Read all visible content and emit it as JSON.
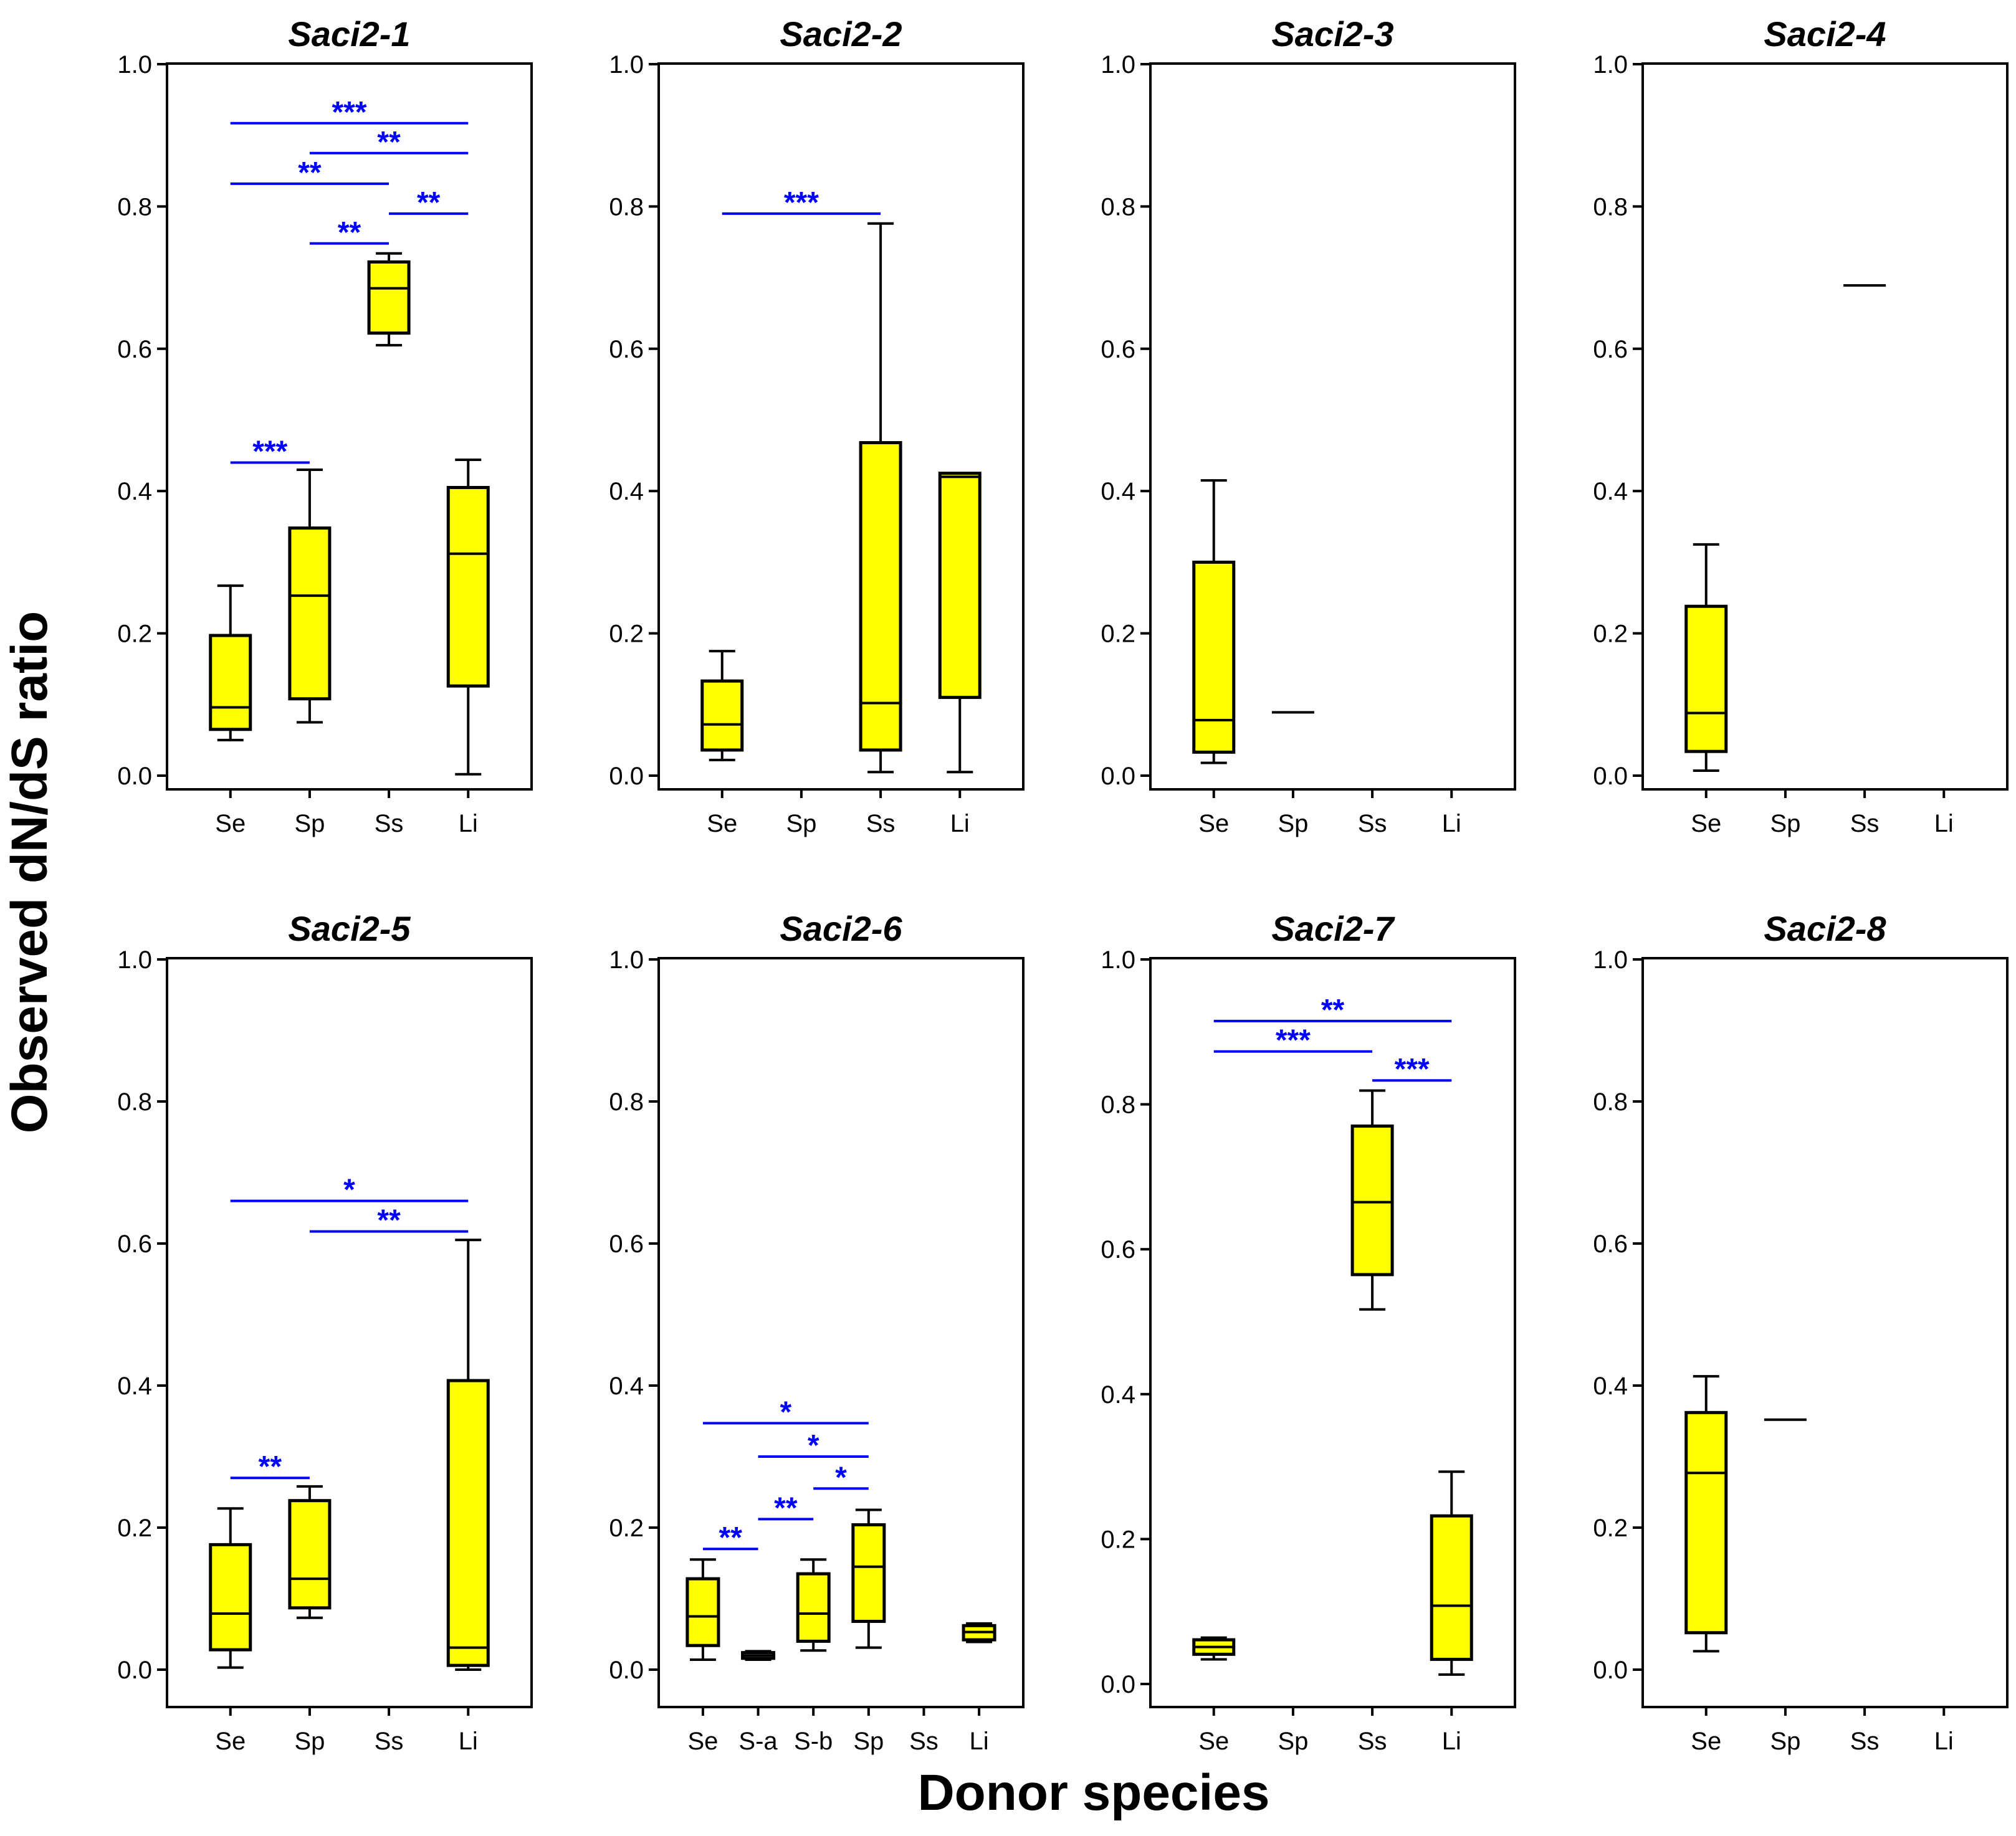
{
  "chart_data": {
    "type": "box",
    "ylabel": "Observed dN/dS ratio",
    "xlabel": "Donor species",
    "ylim": [
      0,
      1.0
    ],
    "yticks": [
      "0.0",
      "0.2",
      "0.4",
      "0.6",
      "0.8",
      "1.0"
    ],
    "colors": {
      "box_fill": "#ffff00",
      "box_edge": "#000000",
      "significance": "#0000ff"
    },
    "panels": [
      {
        "title": "Saci2-1",
        "categories": [
          "Se",
          "Sp",
          "Ss",
          "Li"
        ],
        "boxes": [
          {
            "category": "Se",
            "min": 0.05,
            "q1": 0.065,
            "median": 0.096,
            "q3": 0.197,
            "max": 0.267
          },
          {
            "category": "Sp",
            "min": 0.075,
            "q1": 0.108,
            "median": 0.253,
            "q3": 0.348,
            "max": 0.43
          },
          {
            "category": "Ss",
            "min": 0.605,
            "q1": 0.622,
            "median": 0.685,
            "q3": 0.722,
            "max": 0.734
          },
          {
            "category": "Li",
            "min": 0.002,
            "q1": 0.126,
            "median": 0.312,
            "q3": 0.405,
            "max": 0.444
          }
        ],
        "significance": [
          {
            "from": "Se",
            "to": "Sp",
            "y": 0.44,
            "label": "***"
          },
          {
            "from": "Sp",
            "to": "Ss",
            "y": 0.748,
            "label": "**"
          },
          {
            "from": "Ss",
            "to": "Li",
            "y": 0.79,
            "label": "**"
          },
          {
            "from": "Se",
            "to": "Ss",
            "y": 0.832,
            "label": "**"
          },
          {
            "from": "Sp",
            "to": "Li",
            "y": 0.875,
            "label": "**"
          },
          {
            "from": "Se",
            "to": "Li",
            "y": 0.917,
            "label": "***"
          }
        ]
      },
      {
        "title": "Saci2-2",
        "categories": [
          "Se",
          "Sp",
          "Ss",
          "Li"
        ],
        "boxes": [
          {
            "category": "Se",
            "min": 0.022,
            "q1": 0.036,
            "median": 0.072,
            "q3": 0.133,
            "max": 0.175
          },
          {
            "category": "Ss",
            "min": 0.005,
            "q1": 0.036,
            "median": 0.102,
            "q3": 0.468,
            "max": 0.776
          },
          {
            "category": "Li",
            "min": 0.005,
            "q1": 0.11,
            "median": 0.42,
            "q3": 0.425,
            "max": 0.425
          }
        ],
        "significance": [
          {
            "from": "Se",
            "to": "Ss",
            "y": 0.79,
            "label": "***"
          }
        ]
      },
      {
        "title": "Saci2-3",
        "categories": [
          "Se",
          "Sp",
          "Ss",
          "Li"
        ],
        "boxes": [
          {
            "category": "Se",
            "min": 0.018,
            "q1": 0.033,
            "median": 0.078,
            "q3": 0.3,
            "max": 0.415
          },
          {
            "category": "Sp",
            "min": 0.089,
            "q1": 0.089,
            "median": 0.089,
            "q3": 0.089,
            "max": 0.089
          }
        ],
        "significance": []
      },
      {
        "title": "Saci2-4",
        "categories": [
          "Se",
          "Sp",
          "Ss",
          "Li"
        ],
        "boxes": [
          {
            "category": "Se",
            "min": 0.007,
            "q1": 0.034,
            "median": 0.088,
            "q3": 0.238,
            "max": 0.325
          },
          {
            "category": "Ss",
            "min": 0.689,
            "q1": 0.689,
            "median": 0.689,
            "q3": 0.689,
            "max": 0.689
          }
        ],
        "significance": []
      },
      {
        "title": "Saci2-5",
        "categories": [
          "Se",
          "Sp",
          "Ss",
          "Li"
        ],
        "boxes": [
          {
            "category": "Se",
            "min": 0.003,
            "q1": 0.028,
            "median": 0.079,
            "q3": 0.176,
            "max": 0.227
          },
          {
            "category": "Sp",
            "min": 0.073,
            "q1": 0.087,
            "median": 0.128,
            "q3": 0.238,
            "max": 0.258
          },
          {
            "category": "Li",
            "min": 0.0,
            "q1": 0.006,
            "median": 0.031,
            "q3": 0.407,
            "max": 0.605
          }
        ],
        "significance": [
          {
            "from": "Se",
            "to": "Sp",
            "y": 0.27,
            "label": "**"
          },
          {
            "from": "Sp",
            "to": "Li",
            "y": 0.617,
            "label": "**"
          },
          {
            "from": "Se",
            "to": "Li",
            "y": 0.66,
            "label": "*"
          }
        ]
      },
      {
        "title": "Saci2-6",
        "categories": [
          "Se",
          "S-a",
          "S-b",
          "Sp",
          "Ss",
          "Li"
        ],
        "boxes": [
          {
            "category": "Se",
            "min": 0.014,
            "q1": 0.034,
            "median": 0.075,
            "q3": 0.128,
            "max": 0.155
          },
          {
            "category": "S-a",
            "min": 0.014,
            "q1": 0.016,
            "median": 0.02,
            "q3": 0.024,
            "max": 0.026
          },
          {
            "category": "S-b",
            "min": 0.027,
            "q1": 0.04,
            "median": 0.079,
            "q3": 0.135,
            "max": 0.155
          },
          {
            "category": "Sp",
            "min": 0.031,
            "q1": 0.068,
            "median": 0.145,
            "q3": 0.204,
            "max": 0.225
          },
          {
            "category": "Li",
            "min": 0.039,
            "q1": 0.042,
            "median": 0.053,
            "q3": 0.062,
            "max": 0.065
          }
        ],
        "significance": [
          {
            "from": "Se",
            "to": "S-a",
            "y": 0.17,
            "label": "**"
          },
          {
            "from": "S-a",
            "to": "S-b",
            "y": 0.212,
            "label": "**"
          },
          {
            "from": "S-b",
            "to": "Sp",
            "y": 0.255,
            "label": "*"
          },
          {
            "from": "S-a",
            "to": "Sp",
            "y": 0.3,
            "label": "*"
          },
          {
            "from": "Se",
            "to": "Sp",
            "y": 0.347,
            "label": "*"
          }
        ]
      },
      {
        "title": "Saci2-7",
        "categories": [
          "Se",
          "Sp",
          "Ss",
          "Li"
        ],
        "boxes": [
          {
            "category": "Se",
            "min": 0.034,
            "q1": 0.041,
            "median": 0.051,
            "q3": 0.061,
            "max": 0.064
          },
          {
            "category": "Ss",
            "min": 0.517,
            "q1": 0.565,
            "median": 0.665,
            "q3": 0.77,
            "max": 0.819
          },
          {
            "category": "Li",
            "min": 0.013,
            "q1": 0.034,
            "median": 0.108,
            "q3": 0.232,
            "max": 0.293
          }
        ],
        "significance": [
          {
            "from": "Ss",
            "to": "Li",
            "y": 0.833,
            "label": "***"
          },
          {
            "from": "Se",
            "to": "Ss",
            "y": 0.873,
            "label": "***"
          },
          {
            "from": "Se",
            "to": "Li",
            "y": 0.915,
            "label": "**"
          }
        ]
      },
      {
        "title": "Saci2-8",
        "categories": [
          "Se",
          "Sp",
          "Ss",
          "Li"
        ],
        "boxes": [
          {
            "category": "Se",
            "min": 0.026,
            "q1": 0.052,
            "median": 0.277,
            "q3": 0.362,
            "max": 0.413
          },
          {
            "category": "Sp",
            "min": 0.352,
            "q1": 0.352,
            "median": 0.352,
            "q3": 0.352,
            "max": 0.352
          }
        ],
        "significance": []
      }
    ]
  }
}
